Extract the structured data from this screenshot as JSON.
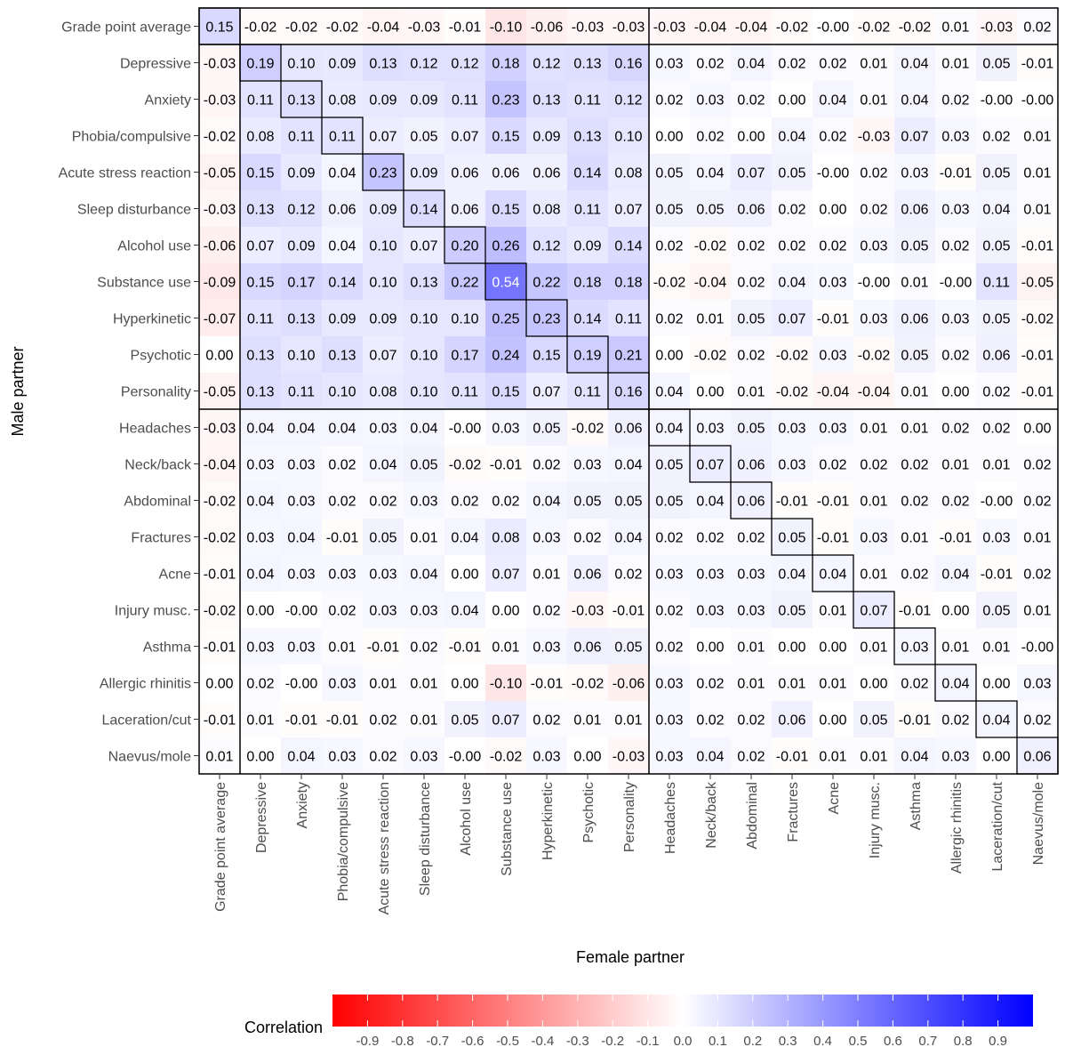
{
  "chart_data": {
    "type": "heatmap",
    "x_axis_title": "Female partner",
    "y_axis_title": "Male partner",
    "legend_title": "Correlation",
    "legend_position": "bottom",
    "color_scale": {
      "low": "#ff0000",
      "mid": "#ffffff",
      "high": "#0000ff",
      "limits": [
        -1,
        1
      ]
    },
    "legend_ticks": [
      "-0.9",
      "-0.8",
      "-0.7",
      "-0.6",
      "-0.5",
      "-0.4",
      "-0.3",
      "-0.2",
      "-0.1",
      "0.0",
      "0.1",
      "0.2",
      "0.3",
      "0.4",
      "0.5",
      "0.6",
      "0.7",
      "0.8",
      "0.9"
    ],
    "categories": [
      "Grade point average",
      "Depressive",
      "Anxiety",
      "Phobia/compulsive",
      "Acute stress reaction",
      "Sleep disturbance",
      "Alcohol use",
      "Substance use",
      "Hyperkinetic",
      "Psychotic",
      "Personality",
      "Headaches",
      "Neck/back",
      "Abdominal",
      "Fractures",
      "Acne",
      "Injury musc.",
      "Asthma",
      "Allergic rhinitis",
      "Laceration/cut",
      "Naevus/mole"
    ],
    "group_breaks_after_index": [
      0,
      10
    ],
    "diagonal_outlined": true,
    "values": [
      [
        "0.15",
        "-0.02",
        "-0.02",
        "-0.02",
        "-0.04",
        "-0.03",
        "-0.01",
        "-0.10",
        "-0.06",
        "-0.03",
        "-0.03",
        "-0.03",
        "-0.04",
        "-0.04",
        "-0.02",
        "-0.00",
        "-0.02",
        "-0.02",
        "0.01",
        "-0.03",
        "0.02"
      ],
      [
        "-0.03",
        "0.19",
        "0.10",
        "0.09",
        "0.13",
        "0.12",
        "0.12",
        "0.18",
        "0.12",
        "0.13",
        "0.16",
        "0.03",
        "0.02",
        "0.04",
        "0.02",
        "0.02",
        "0.01",
        "0.04",
        "0.01",
        "0.05",
        "-0.01"
      ],
      [
        "-0.03",
        "0.11",
        "0.13",
        "0.08",
        "0.09",
        "0.09",
        "0.11",
        "0.23",
        "0.13",
        "0.11",
        "0.12",
        "0.02",
        "0.03",
        "0.02",
        "0.00",
        "0.04",
        "0.01",
        "0.04",
        "0.02",
        "-0.00",
        "-0.00"
      ],
      [
        "-0.02",
        "0.08",
        "0.11",
        "0.11",
        "0.07",
        "0.05",
        "0.07",
        "0.15",
        "0.09",
        "0.13",
        "0.10",
        "0.00",
        "0.02",
        "0.00",
        "0.04",
        "0.02",
        "-0.03",
        "0.07",
        "0.03",
        "0.02",
        "0.01"
      ],
      [
        "-0.05",
        "0.15",
        "0.09",
        "0.04",
        "0.23",
        "0.09",
        "0.06",
        "0.06",
        "0.06",
        "0.14",
        "0.08",
        "0.05",
        "0.04",
        "0.07",
        "0.05",
        "-0.00",
        "0.02",
        "0.03",
        "-0.01",
        "0.05",
        "0.01"
      ],
      [
        "-0.03",
        "0.13",
        "0.12",
        "0.06",
        "0.09",
        "0.14",
        "0.06",
        "0.15",
        "0.08",
        "0.11",
        "0.07",
        "0.05",
        "0.05",
        "0.06",
        "0.02",
        "0.00",
        "0.02",
        "0.06",
        "0.03",
        "0.04",
        "0.01"
      ],
      [
        "-0.06",
        "0.07",
        "0.09",
        "0.04",
        "0.10",
        "0.07",
        "0.20",
        "0.26",
        "0.12",
        "0.09",
        "0.14",
        "0.02",
        "-0.02",
        "0.02",
        "0.02",
        "0.02",
        "0.03",
        "0.05",
        "0.02",
        "0.05",
        "-0.01"
      ],
      [
        "-0.09",
        "0.15",
        "0.17",
        "0.14",
        "0.10",
        "0.13",
        "0.22",
        "0.54",
        "0.22",
        "0.18",
        "0.18",
        "-0.02",
        "-0.04",
        "0.02",
        "0.04",
        "0.03",
        "-0.00",
        "0.01",
        "-0.00",
        "0.11",
        "-0.05"
      ],
      [
        "-0.07",
        "0.11",
        "0.13",
        "0.09",
        "0.09",
        "0.10",
        "0.10",
        "0.25",
        "0.23",
        "0.14",
        "0.11",
        "0.02",
        "0.01",
        "0.05",
        "0.07",
        "-0.01",
        "0.03",
        "0.06",
        "0.03",
        "0.05",
        "-0.02"
      ],
      [
        "0.00",
        "0.13",
        "0.10",
        "0.13",
        "0.07",
        "0.10",
        "0.17",
        "0.24",
        "0.15",
        "0.19",
        "0.21",
        "0.00",
        "-0.02",
        "0.02",
        "-0.02",
        "0.03",
        "-0.02",
        "0.05",
        "0.02",
        "0.06",
        "-0.01"
      ],
      [
        "-0.05",
        "0.13",
        "0.11",
        "0.10",
        "0.08",
        "0.10",
        "0.11",
        "0.15",
        "0.07",
        "0.11",
        "0.16",
        "0.04",
        "0.00",
        "0.01",
        "-0.02",
        "-0.04",
        "-0.04",
        "0.01",
        "0.00",
        "0.02",
        "-0.01"
      ],
      [
        "-0.03",
        "0.04",
        "0.04",
        "0.04",
        "0.03",
        "0.04",
        "-0.00",
        "0.03",
        "0.05",
        "-0.02",
        "0.06",
        "0.04",
        "0.03",
        "0.05",
        "0.03",
        "0.03",
        "0.01",
        "0.01",
        "0.02",
        "0.02",
        "0.00"
      ],
      [
        "-0.04",
        "0.03",
        "0.03",
        "0.02",
        "0.04",
        "0.05",
        "-0.02",
        "-0.01",
        "0.02",
        "0.03",
        "0.04",
        "0.05",
        "0.07",
        "0.06",
        "0.03",
        "0.02",
        "0.02",
        "0.02",
        "0.01",
        "0.01",
        "0.02"
      ],
      [
        "-0.02",
        "0.04",
        "0.03",
        "0.02",
        "0.02",
        "0.03",
        "0.02",
        "0.02",
        "0.04",
        "0.05",
        "0.05",
        "0.05",
        "0.04",
        "0.06",
        "-0.01",
        "-0.01",
        "0.01",
        "0.02",
        "0.02",
        "-0.00",
        "0.02"
      ],
      [
        "-0.02",
        "0.03",
        "0.04",
        "-0.01",
        "0.05",
        "0.01",
        "0.04",
        "0.08",
        "0.03",
        "0.02",
        "0.04",
        "0.02",
        "0.02",
        "0.02",
        "0.05",
        "-0.01",
        "0.03",
        "0.01",
        "-0.01",
        "0.03",
        "0.01"
      ],
      [
        "-0.01",
        "0.04",
        "0.03",
        "0.03",
        "0.03",
        "0.04",
        "0.00",
        "0.07",
        "0.01",
        "0.06",
        "0.02",
        "0.03",
        "0.03",
        "0.03",
        "0.04",
        "0.04",
        "0.01",
        "0.02",
        "0.04",
        "-0.01",
        "0.02"
      ],
      [
        "-0.02",
        "0.00",
        "-0.00",
        "0.02",
        "0.03",
        "0.03",
        "0.04",
        "0.00",
        "0.02",
        "-0.03",
        "-0.01",
        "0.02",
        "0.03",
        "0.03",
        "0.05",
        "0.01",
        "0.07",
        "-0.01",
        "0.00",
        "0.05",
        "0.01"
      ],
      [
        "-0.01",
        "0.03",
        "0.03",
        "0.01",
        "-0.01",
        "0.02",
        "-0.01",
        "0.01",
        "0.03",
        "0.06",
        "0.05",
        "0.02",
        "0.00",
        "0.01",
        "0.00",
        "0.00",
        "0.01",
        "0.03",
        "0.01",
        "0.01",
        "-0.00"
      ],
      [
        "0.00",
        "0.02",
        "-0.00",
        "0.03",
        "0.01",
        "0.01",
        "0.00",
        "-0.10",
        "-0.01",
        "-0.02",
        "-0.06",
        "0.03",
        "0.02",
        "0.01",
        "0.01",
        "0.01",
        "0.00",
        "0.02",
        "0.04",
        "0.00",
        "0.03"
      ],
      [
        "-0.01",
        "0.01",
        "-0.01",
        "-0.01",
        "0.02",
        "0.01",
        "0.05",
        "0.07",
        "0.02",
        "0.01",
        "0.01",
        "0.03",
        "0.02",
        "0.02",
        "0.06",
        "0.00",
        "0.05",
        "-0.01",
        "0.02",
        "0.04",
        "0.02"
      ],
      [
        "0.01",
        "0.00",
        "0.04",
        "0.03",
        "0.02",
        "0.03",
        "-0.00",
        "-0.02",
        "0.03",
        "0.00",
        "-0.03",
        "0.03",
        "0.04",
        "0.02",
        "-0.01",
        "0.01",
        "0.01",
        "0.04",
        "0.03",
        "0.00",
        "0.06"
      ]
    ]
  }
}
